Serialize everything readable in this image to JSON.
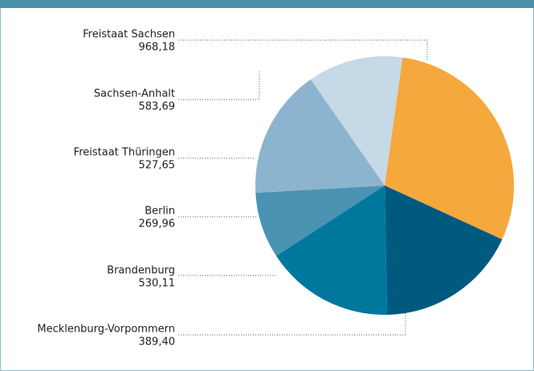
{
  "chart_data": {
    "type": "pie",
    "categories": [
      "Freistaat Sachsen",
      "Sachsen-Anhalt",
      "Freistaat Thüringen",
      "Berlin",
      "Brandenburg",
      "Mecklenburg-Vorpommern"
    ],
    "values": [
      968.18,
      583.69,
      527.65,
      269.96,
      530.11,
      389.4
    ],
    "value_labels": [
      "968,18",
      "583,69",
      "527,65",
      "269,96",
      "530,11",
      "389,40"
    ],
    "colors": [
      "#f5a83c",
      "#005a80",
      "#00789e",
      "#4a93b3",
      "#8db4cf",
      "#c5d9e6"
    ]
  }
}
